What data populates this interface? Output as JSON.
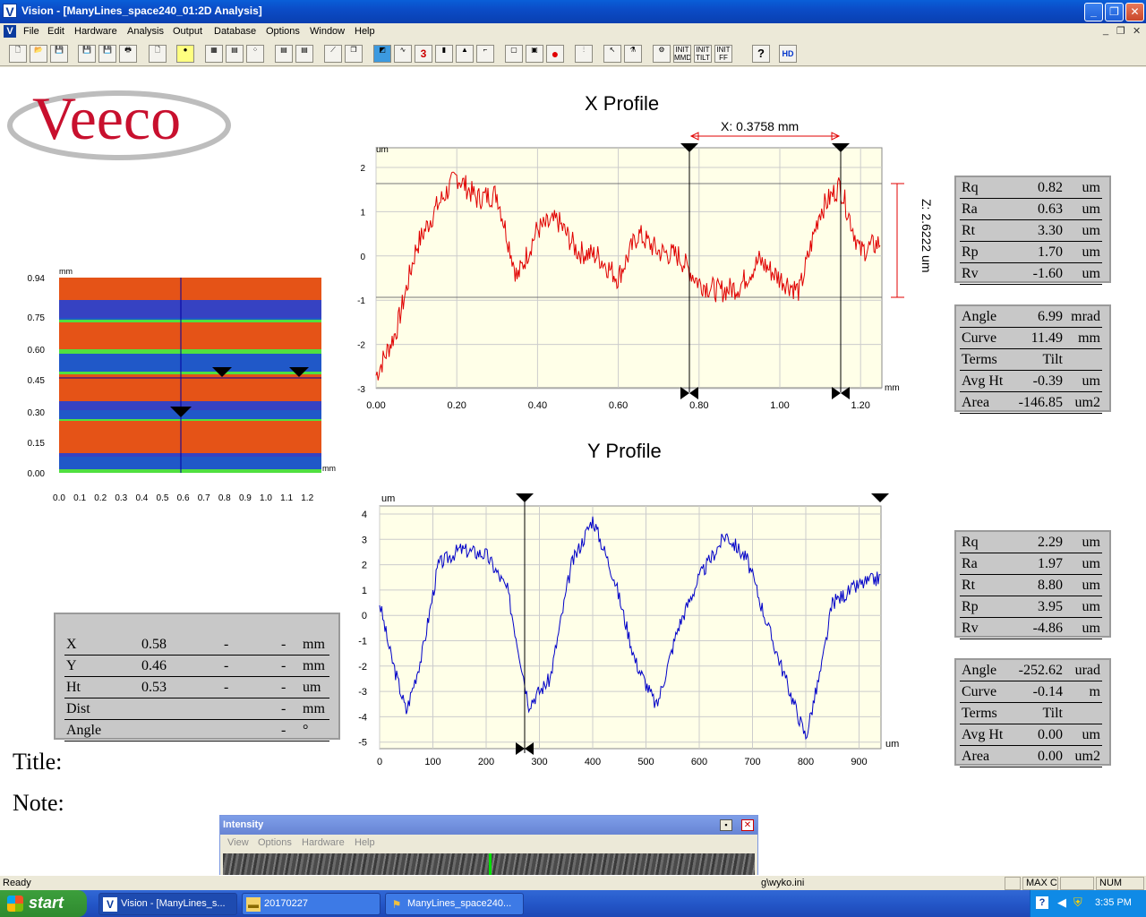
{
  "window": {
    "title": "Vision - [ManyLines_space240_01:2D Analysis]",
    "app_icon": "V"
  },
  "menu": {
    "items": [
      "File",
      "Edit",
      "Hardware",
      "Analysis",
      "Output",
      "Database",
      "Options",
      "Window",
      "Help"
    ]
  },
  "toolbar": {
    "init_labels": [
      "INIT MMD",
      "INIT TILT",
      "INIT FF"
    ],
    "hd_label": "HD"
  },
  "logo": {
    "text": "Veeco"
  },
  "x_profile": {
    "title": "X Profile",
    "y_unit": "um",
    "x_unit": "mm",
    "cursor_label": "X: 0.3758 mm",
    "z_label": "Z: 2.6222 um",
    "y_ticks": [
      "2",
      "1",
      "0",
      "-1",
      "-2",
      "-3"
    ],
    "x_ticks": [
      "0.00",
      "0.20",
      "0.40",
      "0.60",
      "0.80",
      "1.00",
      "1.20"
    ]
  },
  "y_profile": {
    "title": "Y Profile",
    "y_unit": "um",
    "x_unit": "um",
    "y_ticks": [
      "4",
      "3",
      "2",
      "1",
      "0",
      "-1",
      "-2",
      "-3",
      "-4",
      "-5"
    ],
    "x_ticks": [
      "0",
      "100",
      "200",
      "300",
      "400",
      "500",
      "600",
      "700",
      "800",
      "900"
    ]
  },
  "map": {
    "y_unit": "mm",
    "x_unit": "mm",
    "y_ticks": [
      "0.94",
      "0.75",
      "0.60",
      "0.45",
      "0.30",
      "0.15",
      "0.00"
    ],
    "x_ticks": [
      "0.0",
      "0.1",
      "0.2",
      "0.3",
      "0.4",
      "0.5",
      "0.6",
      "0.7",
      "0.8",
      "0.9",
      "1.0",
      "1.1",
      "1.2"
    ]
  },
  "x_stats": [
    {
      "name": "Rq",
      "value": "0.82",
      "unit": "um"
    },
    {
      "name": "Ra",
      "value": "0.63",
      "unit": "um"
    },
    {
      "name": "Rt",
      "value": "3.30",
      "unit": "um"
    },
    {
      "name": "Rp",
      "value": "1.70",
      "unit": "um"
    },
    {
      "name": "Rv",
      "value": "-1.60",
      "unit": "um"
    }
  ],
  "x_fit": [
    {
      "name": "Angle",
      "value": "6.99",
      "unit": "mrad"
    },
    {
      "name": "Curve",
      "value": "11.49",
      "unit": "mm"
    },
    {
      "name": "Terms",
      "value": "Tilt",
      "unit": ""
    },
    {
      "name": "Avg Ht",
      "value": "-0.39",
      "unit": "um"
    },
    {
      "name": "Area",
      "value": "-146.85",
      "unit": "um2"
    }
  ],
  "y_stats": [
    {
      "name": "Rq",
      "value": "2.29",
      "unit": "um"
    },
    {
      "name": "Ra",
      "value": "1.97",
      "unit": "um"
    },
    {
      "name": "Rt",
      "value": "8.80",
      "unit": "um"
    },
    {
      "name": "Rp",
      "value": "3.95",
      "unit": "um"
    },
    {
      "name": "Rv",
      "value": "-4.86",
      "unit": "um"
    }
  ],
  "y_fit": [
    {
      "name": "Angle",
      "value": "-252.62",
      "unit": "urad"
    },
    {
      "name": "Curve",
      "value": "-0.14",
      "unit": "m"
    },
    {
      "name": "Terms",
      "value": "Tilt",
      "unit": ""
    },
    {
      "name": "Avg Ht",
      "value": "0.00",
      "unit": "um"
    },
    {
      "name": "Area",
      "value": "0.00",
      "unit": "um2"
    }
  ],
  "cursor_info": [
    {
      "name": "X",
      "v1": "0.58",
      "v2": "-",
      "v3": "-",
      "unit": "mm"
    },
    {
      "name": "Y",
      "v1": "0.46",
      "v2": "-",
      "v3": "-",
      "unit": "mm"
    },
    {
      "name": "Ht",
      "v1": "0.53",
      "v2": "-",
      "v3": "-",
      "unit": "um"
    },
    {
      "name": "Dist",
      "v1": "",
      "v2": "",
      "v3": "-",
      "unit": "mm"
    },
    {
      "name": "Angle",
      "v1": "",
      "v2": "",
      "v3": "-",
      "unit": "°"
    }
  ],
  "labels": {
    "title": "Title:",
    "note": "Note:"
  },
  "intensity": {
    "title": "Intensity",
    "menu": [
      "View",
      "Options",
      "Hardware",
      "Help"
    ]
  },
  "status": {
    "ready": "Ready",
    "path_tail": "g\\wyko.ini",
    "max": "MAX C",
    "num": "NUM"
  },
  "taskbar": {
    "start": "start",
    "tasks": [
      "Vision - [ManyLines_s...",
      "20170227",
      "ManyLines_space240..."
    ],
    "clock": "3:35 PM"
  },
  "colors": {
    "x_series": "#e00000",
    "y_series": "#0000c8",
    "plot_bg": "#ffffe8",
    "logo": "#c8102e"
  }
}
